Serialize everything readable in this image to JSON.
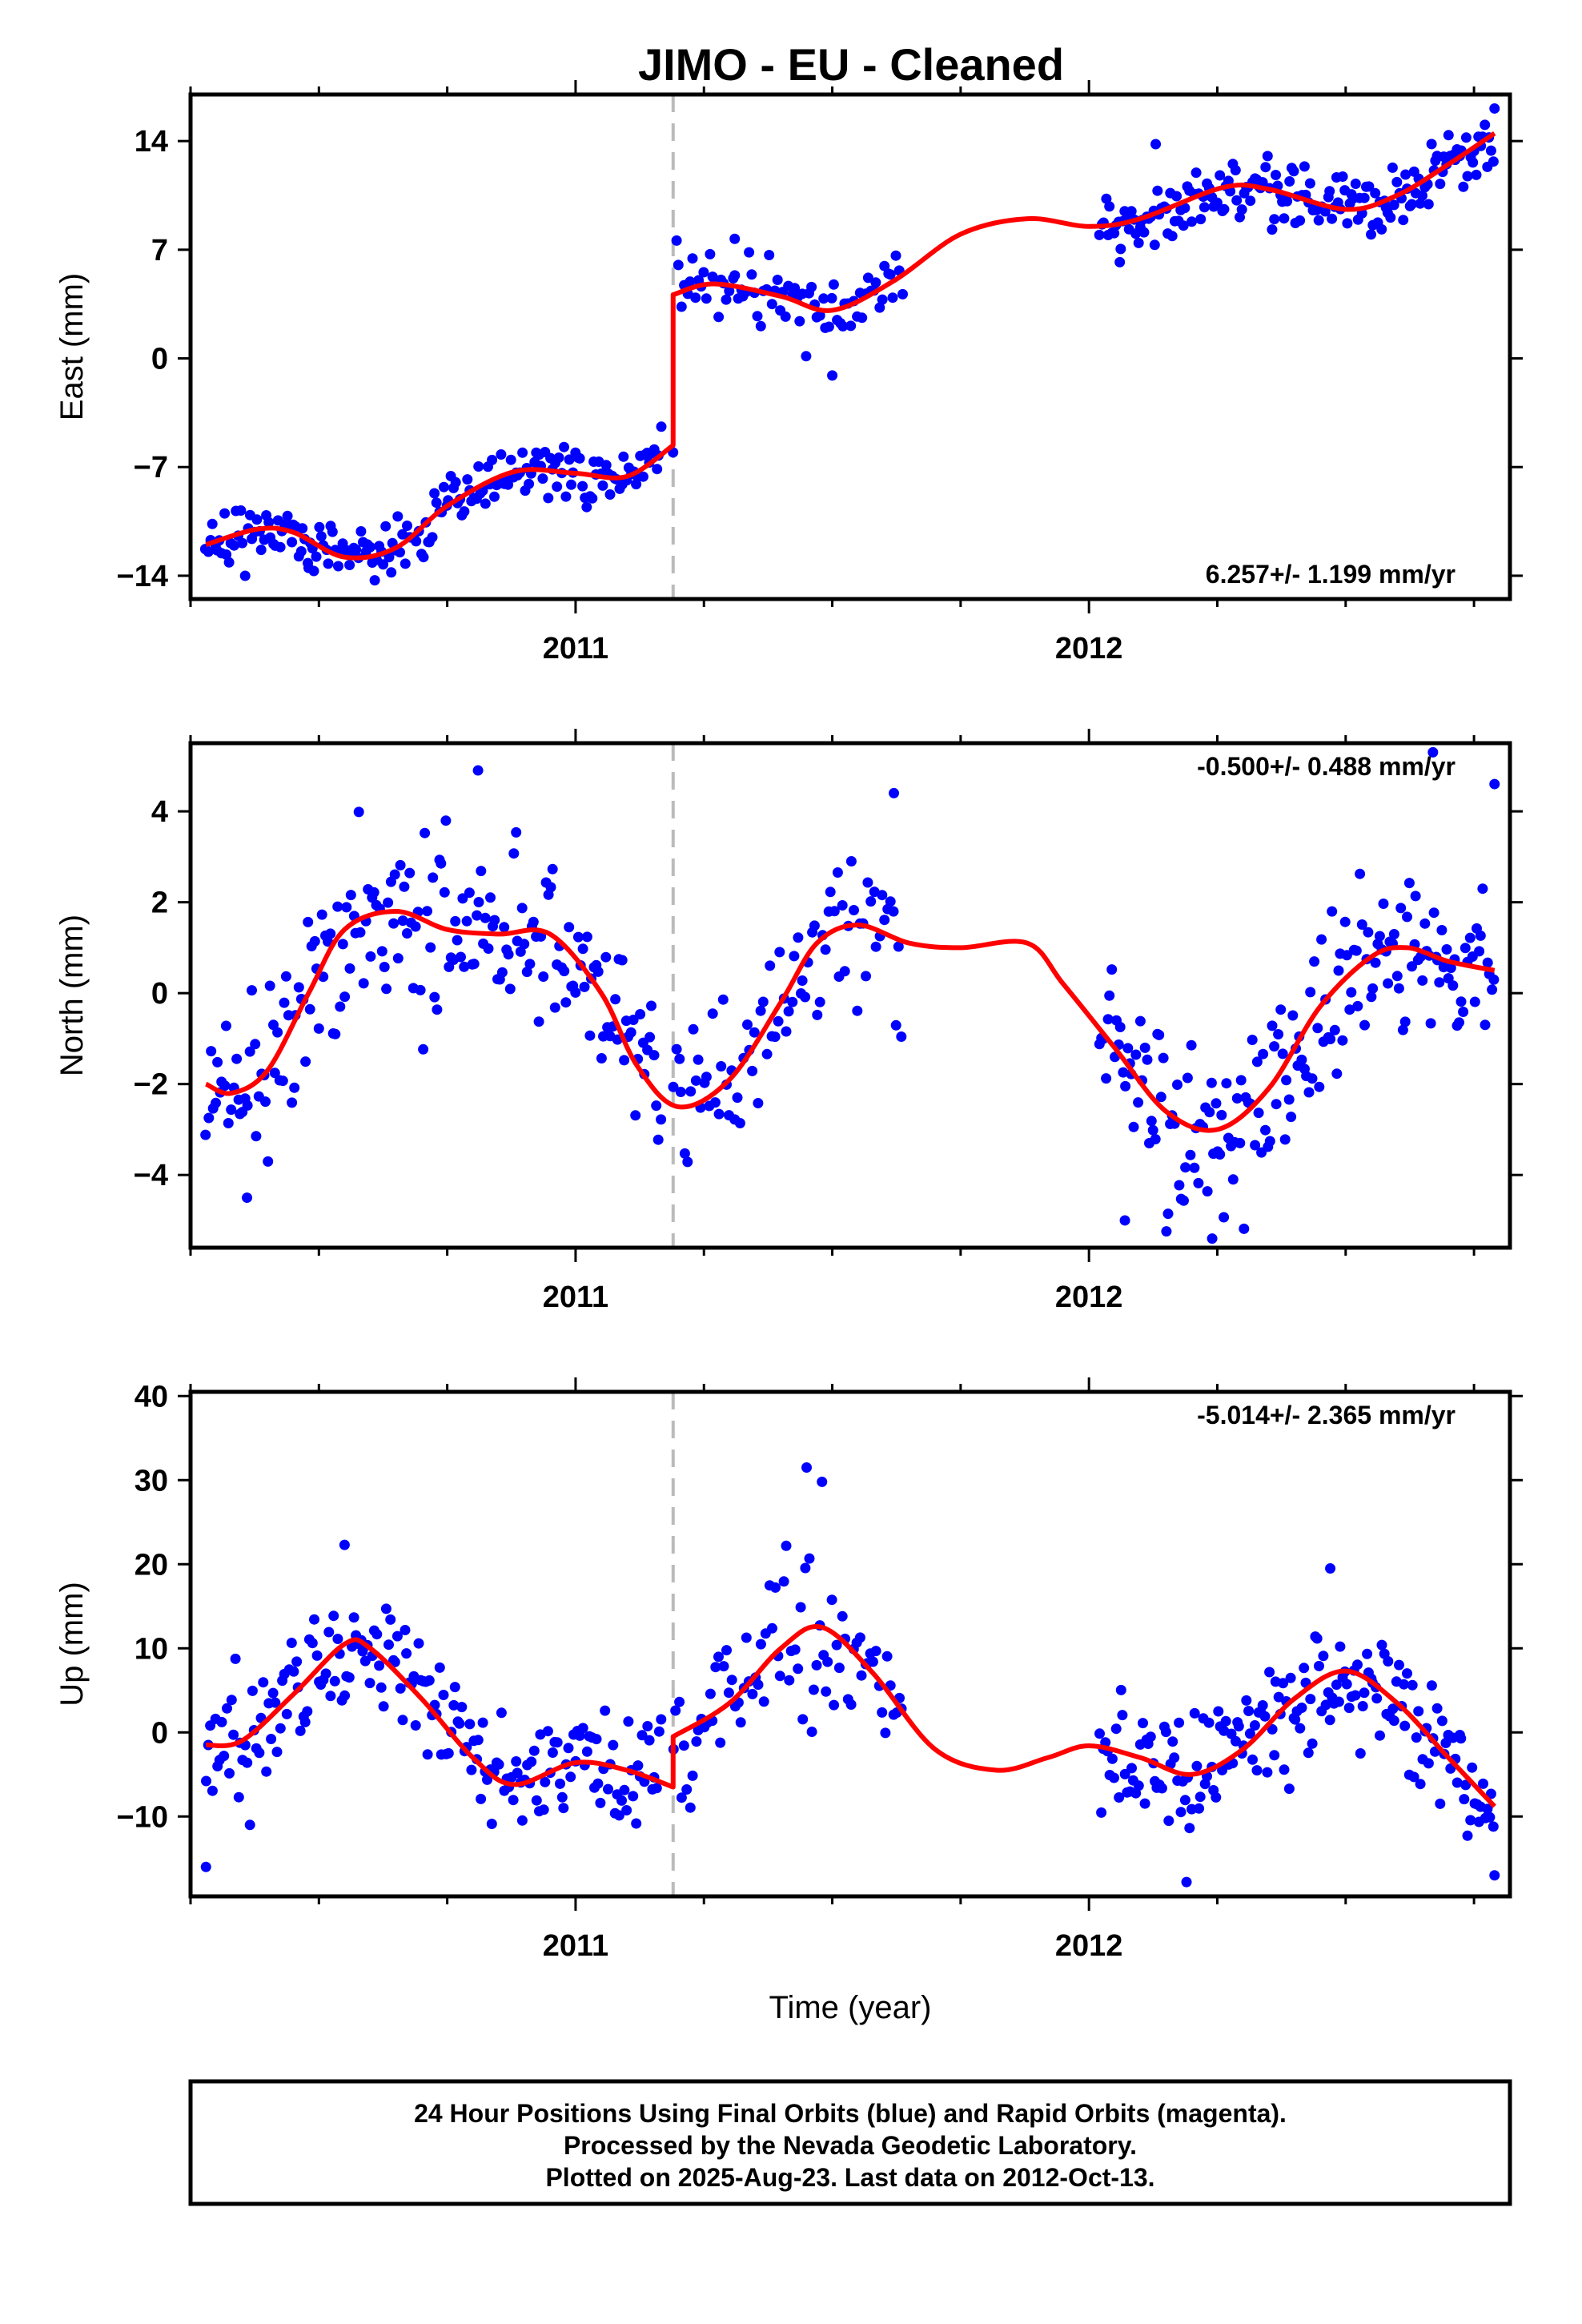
{
  "title": "JIMO  - EU - Cleaned",
  "footer": {
    "line1": "24 Hour Positions Using Final Orbits (blue) and Rapid Orbits (magenta).",
    "line2": "Processed by the Nevada Geodetic Laboratory.",
    "line3": "Plotted on 2025-Aug-23. Last data on 2012-Oct-13."
  },
  "colors": {
    "points": "#0000ff",
    "model": "#ff0000",
    "equipment_change": "#bbbbbb",
    "frame": "#000000"
  },
  "chart_data": [
    {
      "type": "scatter",
      "ylabel": "East (mm)",
      "xlabel": "",
      "xlim": [
        2010.25,
        2012.82
      ],
      "ylim": [
        -15.5,
        17
      ],
      "xticks": [
        2011,
        2012
      ],
      "yticks": [
        -14,
        -7,
        0,
        7,
        14
      ],
      "rate": "6.257+/- 1.199 mm/yr",
      "rate_position": "bottom-right",
      "equipment_change_year": 2011.19,
      "series": [
        {
          "role": "observations",
          "segments": [
            {
              "x_start": 2010.28,
              "x_end": 2011.17,
              "step": 0.0045,
              "scatter": 0.9
            },
            {
              "x_start": 2011.19,
              "x_end": 2011.64,
              "step": 0.0055,
              "scatter": 1.2
            },
            {
              "x_start": 2012.02,
              "x_end": 2012.79,
              "step": 0.0042,
              "scatter": 1.0
            }
          ],
          "outliers": [
            [
              2011.31,
              7.7
            ],
            [
              2010.48,
              -13.5
            ],
            [
              2012.13,
              13.8
            ],
            [
              2012.79,
              16.1
            ],
            [
              2011.5,
              -1.1
            ],
            [
              2012.06,
              6.2
            ]
          ]
        },
        {
          "role": "model",
          "points": [
            [
              2010.28,
              -12.0
            ],
            [
              2010.38,
              -11.0
            ],
            [
              2010.45,
              -11.2
            ],
            [
              2010.55,
              -12.8
            ],
            [
              2010.65,
              -12.2
            ],
            [
              2010.75,
              -9.5
            ],
            [
              2010.88,
              -7.3
            ],
            [
              2011.0,
              -7.4
            ],
            [
              2011.1,
              -7.6
            ],
            [
              2011.19,
              -5.6
            ],
            [
              2011.19,
              4.1
            ],
            [
              2011.27,
              4.8
            ],
            [
              2011.4,
              4.0
            ],
            [
              2011.5,
              3.1
            ],
            [
              2011.62,
              5.0
            ],
            [
              2011.75,
              8.0
            ],
            [
              2011.88,
              9.0
            ],
            [
              2012.0,
              8.5
            ],
            [
              2012.1,
              9.0
            ],
            [
              2012.26,
              11.0
            ],
            [
              2012.35,
              10.9
            ],
            [
              2012.5,
              9.6
            ],
            [
              2012.6,
              10.5
            ],
            [
              2012.7,
              12.5
            ],
            [
              2012.79,
              14.5
            ]
          ]
        }
      ]
    },
    {
      "type": "scatter",
      "ylabel": "North (mm)",
      "xlabel": "",
      "xlim": [
        2010.25,
        2012.82
      ],
      "ylim": [
        -5.6,
        5.5
      ],
      "xticks": [
        2011,
        2012
      ],
      "yticks": [
        -4,
        -2,
        0,
        2,
        4
      ],
      "rate": "-0.500+/- 0.488 mm/yr",
      "rate_position": "top-right",
      "equipment_change_year": 2011.19,
      "series": [
        {
          "role": "observations",
          "segments": [
            {
              "x_start": 2010.28,
              "x_end": 2011.17,
              "step": 0.0045,
              "scatter": 1.0
            },
            {
              "x_start": 2011.19,
              "x_end": 2011.64,
              "step": 0.0055,
              "scatter": 1.0
            },
            {
              "x_start": 2012.02,
              "x_end": 2012.79,
              "step": 0.0042,
              "scatter": 1.0
            }
          ],
          "outliers": [
            [
              2010.81,
              4.9
            ],
            [
              2010.36,
              -4.5
            ],
            [
              2011.62,
              4.4
            ],
            [
              2012.67,
              5.3
            ],
            [
              2012.07,
              -5.0
            ],
            [
              2012.24,
              -5.4
            ],
            [
              2012.79,
              4.6
            ]
          ]
        },
        {
          "role": "model",
          "points": [
            [
              2010.28,
              -2.0
            ],
            [
              2010.33,
              -2.2
            ],
            [
              2010.4,
              -1.7
            ],
            [
              2010.48,
              0.0
            ],
            [
              2010.55,
              1.4
            ],
            [
              2010.65,
              1.8
            ],
            [
              2010.75,
              1.4
            ],
            [
              2010.85,
              1.3
            ],
            [
              2010.95,
              1.3
            ],
            [
              2011.05,
              0.0
            ],
            [
              2011.12,
              -1.6
            ],
            [
              2011.2,
              -2.5
            ],
            [
              2011.3,
              -1.9
            ],
            [
              2011.4,
              -0.2
            ],
            [
              2011.47,
              1.1
            ],
            [
              2011.55,
              1.5
            ],
            [
              2011.65,
              1.1
            ],
            [
              2011.75,
              1.0
            ],
            [
              2011.88,
              1.1
            ],
            [
              2011.95,
              0.2
            ],
            [
              2012.05,
              -1.2
            ],
            [
              2012.15,
              -2.6
            ],
            [
              2012.25,
              -3.0
            ],
            [
              2012.35,
              -2.1
            ],
            [
              2012.45,
              -0.3
            ],
            [
              2012.55,
              0.8
            ],
            [
              2012.62,
              1.0
            ],
            [
              2012.7,
              0.7
            ],
            [
              2012.79,
              0.5
            ]
          ]
        }
      ]
    },
    {
      "type": "scatter",
      "ylabel": "Up (mm)",
      "xlabel": "Time (year)",
      "xlim": [
        2010.25,
        2012.82
      ],
      "ylim": [
        -19.5,
        40.5
      ],
      "xticks": [
        2011,
        2012
      ],
      "yticks": [
        -10,
        0,
        10,
        20,
        30,
        40
      ],
      "rate": "-5.014+/- 2.365 mm/yr",
      "rate_position": "top-right",
      "equipment_change_year": 2011.19,
      "series": [
        {
          "role": "observations",
          "segments": [
            {
              "x_start": 2010.28,
              "x_end": 2011.17,
              "step": 0.0045,
              "scatter": 3.5
            },
            {
              "x_start": 2011.19,
              "x_end": 2011.64,
              "step": 0.0055,
              "scatter": 4.5
            },
            {
              "x_start": 2012.02,
              "x_end": 2012.79,
              "step": 0.0042,
              "scatter": 3.5
            }
          ],
          "outliers": [
            [
              2010.28,
              -16.0
            ],
            [
              2011.45,
              31.5
            ],
            [
              2011.48,
              29.8
            ],
            [
              2012.19,
              -17.8
            ],
            [
              2012.47,
              19.5
            ],
            [
              2012.79,
              -17.0
            ],
            [
              2010.55,
              22.3
            ]
          ]
        },
        {
          "role": "model",
          "points": [
            [
              2010.28,
              -1.5
            ],
            [
              2010.35,
              -1.0
            ],
            [
              2010.45,
              4.5
            ],
            [
              2010.55,
              10.5
            ],
            [
              2010.6,
              10.0
            ],
            [
              2010.7,
              4.0
            ],
            [
              2010.8,
              -3.0
            ],
            [
              2010.88,
              -6.2
            ],
            [
              2011.0,
              -3.6
            ],
            [
              2011.1,
              -4.5
            ],
            [
              2011.19,
              -6.5
            ],
            [
              2011.19,
              -0.5
            ],
            [
              2011.3,
              3.5
            ],
            [
              2011.4,
              10.0
            ],
            [
              2011.48,
              12.5
            ],
            [
              2011.58,
              7.0
            ],
            [
              2011.7,
              -2.0
            ],
            [
              2011.82,
              -4.5
            ],
            [
              2011.92,
              -3.0
            ],
            [
              2012.0,
              -1.6
            ],
            [
              2012.1,
              -3.0
            ],
            [
              2012.2,
              -5.0
            ],
            [
              2012.3,
              -2.0
            ],
            [
              2012.4,
              4.0
            ],
            [
              2012.5,
              7.3
            ],
            [
              2012.6,
              3.5
            ],
            [
              2012.7,
              -3.0
            ],
            [
              2012.79,
              -8.8
            ]
          ]
        }
      ]
    }
  ]
}
